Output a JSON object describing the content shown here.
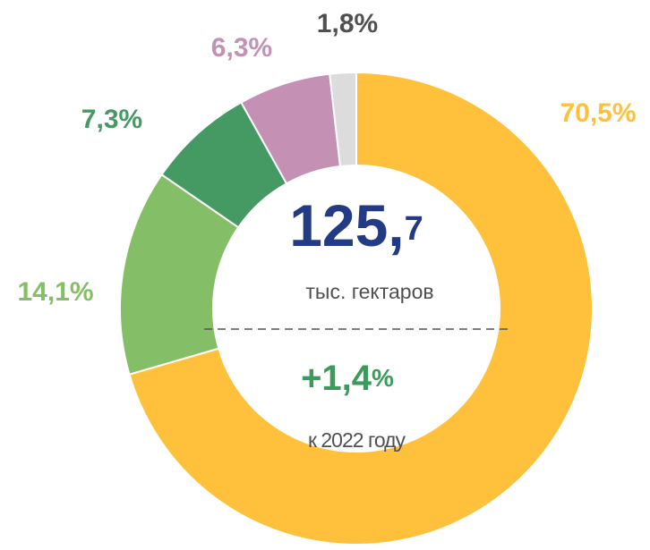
{
  "chart_data": {
    "type": "donut",
    "values": [
      70.5,
      14.1,
      7.3,
      6.3,
      1.8
    ],
    "value_labels": [
      "70,5%",
      "14,1%",
      "7,3%",
      "6,3%",
      "1,8%"
    ],
    "colors": [
      "#FFC13C",
      "#84BF68",
      "#459A64",
      "#C490B3",
      "#DCDCDC"
    ],
    "label_colors": [
      "#FFC13C",
      "#84BF68",
      "#459A64",
      "#C490B3",
      "#505050"
    ],
    "center": {
      "value_main": "125,",
      "value_decimal": "7",
      "unit": "тыс. гектаров",
      "change_main": "+1,4",
      "change_sign": "%",
      "change_note": "к 2022 году"
    }
  }
}
